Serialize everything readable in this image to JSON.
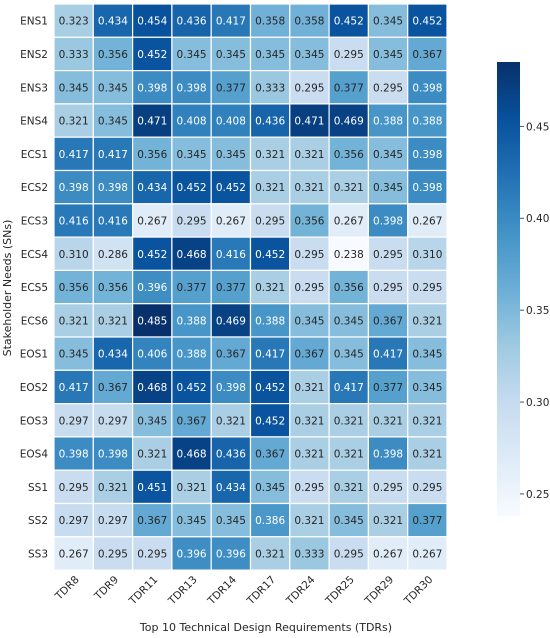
{
  "chart_data": {
    "type": "heatmap",
    "xlabel": "Top 10 Technical Design Requirements (TDRs)",
    "ylabel": "Stakeholder Needs (SNs)",
    "columns": [
      "TDR8",
      "TDR9",
      "TDR11",
      "TDR13",
      "TDR14",
      "TDR17",
      "TDR24",
      "TDR25",
      "TDR29",
      "TDR30"
    ],
    "rows": [
      "ENS1",
      "ENS2",
      "ENS3",
      "ENS4",
      "ECS1",
      "ECS2",
      "ECS3",
      "ECS4",
      "ECS5",
      "ECS6",
      "EOS1",
      "EOS2",
      "EOS3",
      "EOS4",
      "SS1",
      "SS2",
      "SS3"
    ],
    "values": [
      [
        "0.323",
        "0.434",
        "0.454",
        "0.436",
        "0.417",
        "0.358",
        "0.358",
        "0.452",
        "0.345",
        "0.452"
      ],
      [
        "0.333",
        "0.356",
        "0.452",
        "0.345",
        "0.345",
        "0.345",
        "0.345",
        "0.295",
        "0.345",
        "0.367"
      ],
      [
        "0.345",
        "0.345",
        "0.398",
        "0.398",
        "0.377",
        "0.333",
        "0.295",
        "0.377",
        "0.295",
        "0.398"
      ],
      [
        "0.321",
        "0.345",
        "0.471",
        "0.408",
        "0.408",
        "0.436",
        "0.471",
        "0.469",
        "0.388",
        "0.388"
      ],
      [
        "0.417",
        "0.417",
        "0.356",
        "0.345",
        "0.345",
        "0.321",
        "0.321",
        "0.356",
        "0.345",
        "0.398"
      ],
      [
        "0.398",
        "0.398",
        "0.434",
        "0.452",
        "0.452",
        "0.321",
        "0.321",
        "0.321",
        "0.345",
        "0.398"
      ],
      [
        "0.416",
        "0.416",
        "0.267",
        "0.295",
        "0.267",
        "0.295",
        "0.356",
        "0.267",
        "0.398",
        "0.267"
      ],
      [
        "0.310",
        "0.286",
        "0.452",
        "0.468",
        "0.416",
        "0.452",
        "0.295",
        "0.238",
        "0.295",
        "0.310"
      ],
      [
        "0.356",
        "0.356",
        "0.396",
        "0.377",
        "0.377",
        "0.321",
        "0.295",
        "0.356",
        "0.295",
        "0.295"
      ],
      [
        "0.321",
        "0.321",
        "0.485",
        "0.388",
        "0.469",
        "0.388",
        "0.345",
        "0.345",
        "0.367",
        "0.321"
      ],
      [
        "0.345",
        "0.434",
        "0.406",
        "0.388",
        "0.367",
        "0.417",
        "0.367",
        "0.345",
        "0.417",
        "0.345"
      ],
      [
        "0.417",
        "0.367",
        "0.468",
        "0.452",
        "0.398",
        "0.452",
        "0.321",
        "0.417",
        "0.377",
        "0.345"
      ],
      [
        "0.297",
        "0.297",
        "0.345",
        "0.367",
        "0.321",
        "0.452",
        "0.321",
        "0.321",
        "0.321",
        "0.321"
      ],
      [
        "0.398",
        "0.398",
        "0.321",
        "0.468",
        "0.436",
        "0.367",
        "0.321",
        "0.321",
        "0.398",
        "0.321"
      ],
      [
        "0.295",
        "0.321",
        "0.451",
        "0.321",
        "0.434",
        "0.345",
        "0.295",
        "0.321",
        "0.295",
        "0.295"
      ],
      [
        "0.297",
        "0.297",
        "0.367",
        "0.345",
        "0.345",
        "0.386",
        "0.321",
        "0.345",
        "0.321",
        "0.377"
      ],
      [
        "0.267",
        "0.295",
        "0.295",
        "0.396",
        "0.396",
        "0.321",
        "0.333",
        "0.295",
        "0.267",
        "0.267"
      ]
    ],
    "color_scale": {
      "colormap": "Blues",
      "vmin": 0.238,
      "vmax": 0.485,
      "stops": [
        "#f7fbff",
        "#deebf7",
        "#c6dbef",
        "#9ecae1",
        "#6baed6",
        "#4292c6",
        "#2171b5",
        "#08519c",
        "#08306b"
      ]
    },
    "colorbar_ticks": [
      "0.25",
      "0.30",
      "0.35",
      "0.40",
      "0.45"
    ],
    "grid": true,
    "legend": "colorbar-right"
  }
}
